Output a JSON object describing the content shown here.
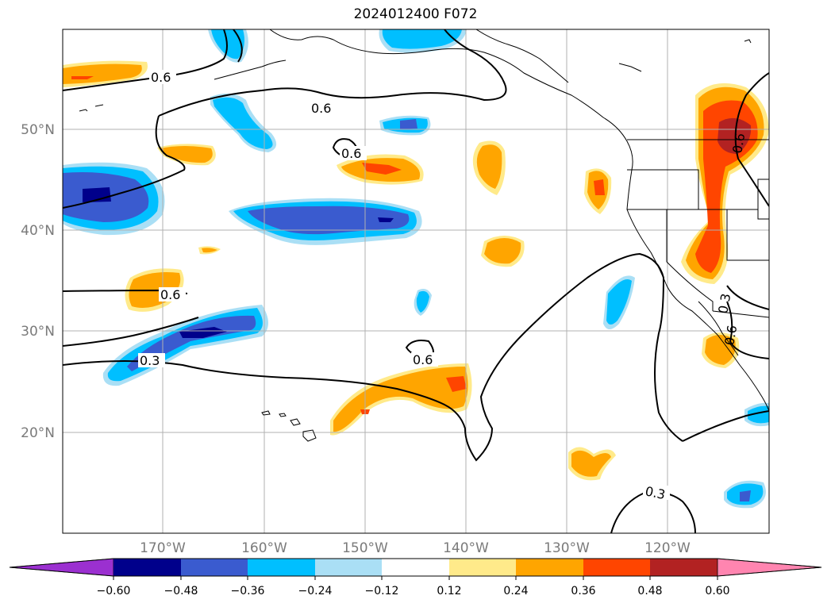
{
  "title": "2024012400 F072",
  "map": {
    "lat_labels": [
      "50°N",
      "40°N",
      "30°N",
      "20°N"
    ],
    "lon_labels": [
      "170°W",
      "160°W",
      "150°W",
      "140°W",
      "130°W",
      "120°W"
    ],
    "contour_labels": [
      "0.6",
      "0.6",
      "0.6",
      "0.6",
      "0.6",
      "0.3",
      "0.6",
      "0.3",
      "0.3",
      "0.6"
    ]
  },
  "colorbar": {
    "colors": [
      "#9b30d0",
      "#00008b",
      "#3a5bcf",
      "#00bfff",
      "#aadff5",
      "#ffffff",
      "#ffea8a",
      "#ffa500",
      "#ff4500",
      "#b22222",
      "#ff85b0"
    ],
    "tick_labels": [
      "−0.60",
      "−0.48",
      "−0.36",
      "−0.24",
      "−0.12",
      "0.12",
      "0.24",
      "0.36",
      "0.48",
      "0.60"
    ]
  }
}
